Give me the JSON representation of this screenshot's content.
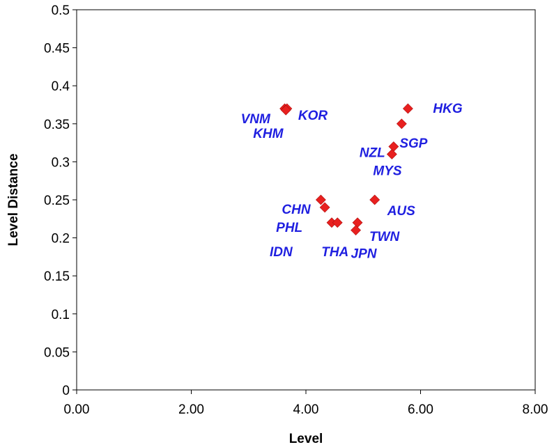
{
  "chart_data": {
    "type": "scatter",
    "title": "",
    "xlabel": "Level",
    "ylabel": "Level Distance",
    "xlim": [
      0,
      8
    ],
    "ylim": [
      0,
      0.5
    ],
    "x_ticks": [
      0,
      2,
      4,
      6,
      8
    ],
    "x_tick_labels": [
      "0.00",
      "2.00",
      "4.00",
      "6.00",
      "8.00"
    ],
    "y_ticks": [
      0,
      0.05,
      0.1,
      0.15,
      0.2,
      0.25,
      0.3,
      0.35,
      0.4,
      0.45,
      0.5
    ],
    "y_tick_labels": [
      "0",
      "0.05",
      "0.1",
      "0.15",
      "0.2",
      "0.25",
      "0.3",
      "0.35",
      "0.4",
      "0.45",
      "0.5"
    ],
    "grid": false,
    "legend": "none",
    "marker_color": "#e8201f",
    "label_color": "#1f1fe0",
    "points": [
      {
        "label": "VNM",
        "x": 3.63,
        "y": 0.37
      },
      {
        "label": "KOR",
        "x": 3.67,
        "y": 0.37
      },
      {
        "label": "KHM",
        "x": 3.65,
        "y": 0.368
      },
      {
        "label": "HKG",
        "x": 5.78,
        "y": 0.37
      },
      {
        "label": "SGP",
        "x": 5.67,
        "y": 0.35
      },
      {
        "label": "NZL",
        "x": 5.53,
        "y": 0.32
      },
      {
        "label": "MYS",
        "x": 5.5,
        "y": 0.31
      },
      {
        "label": "AUS",
        "x": 5.2,
        "y": 0.25
      },
      {
        "label": "CHN",
        "x": 4.26,
        "y": 0.25
      },
      {
        "label": "PHL",
        "x": 4.33,
        "y": 0.24
      },
      {
        "label": "IDN",
        "x": 4.45,
        "y": 0.22
      },
      {
        "label": "THA",
        "x": 4.55,
        "y": 0.22
      },
      {
        "label": "TWN",
        "x": 4.9,
        "y": 0.22
      },
      {
        "label": "JPN",
        "x": 4.87,
        "y": 0.21
      }
    ]
  }
}
